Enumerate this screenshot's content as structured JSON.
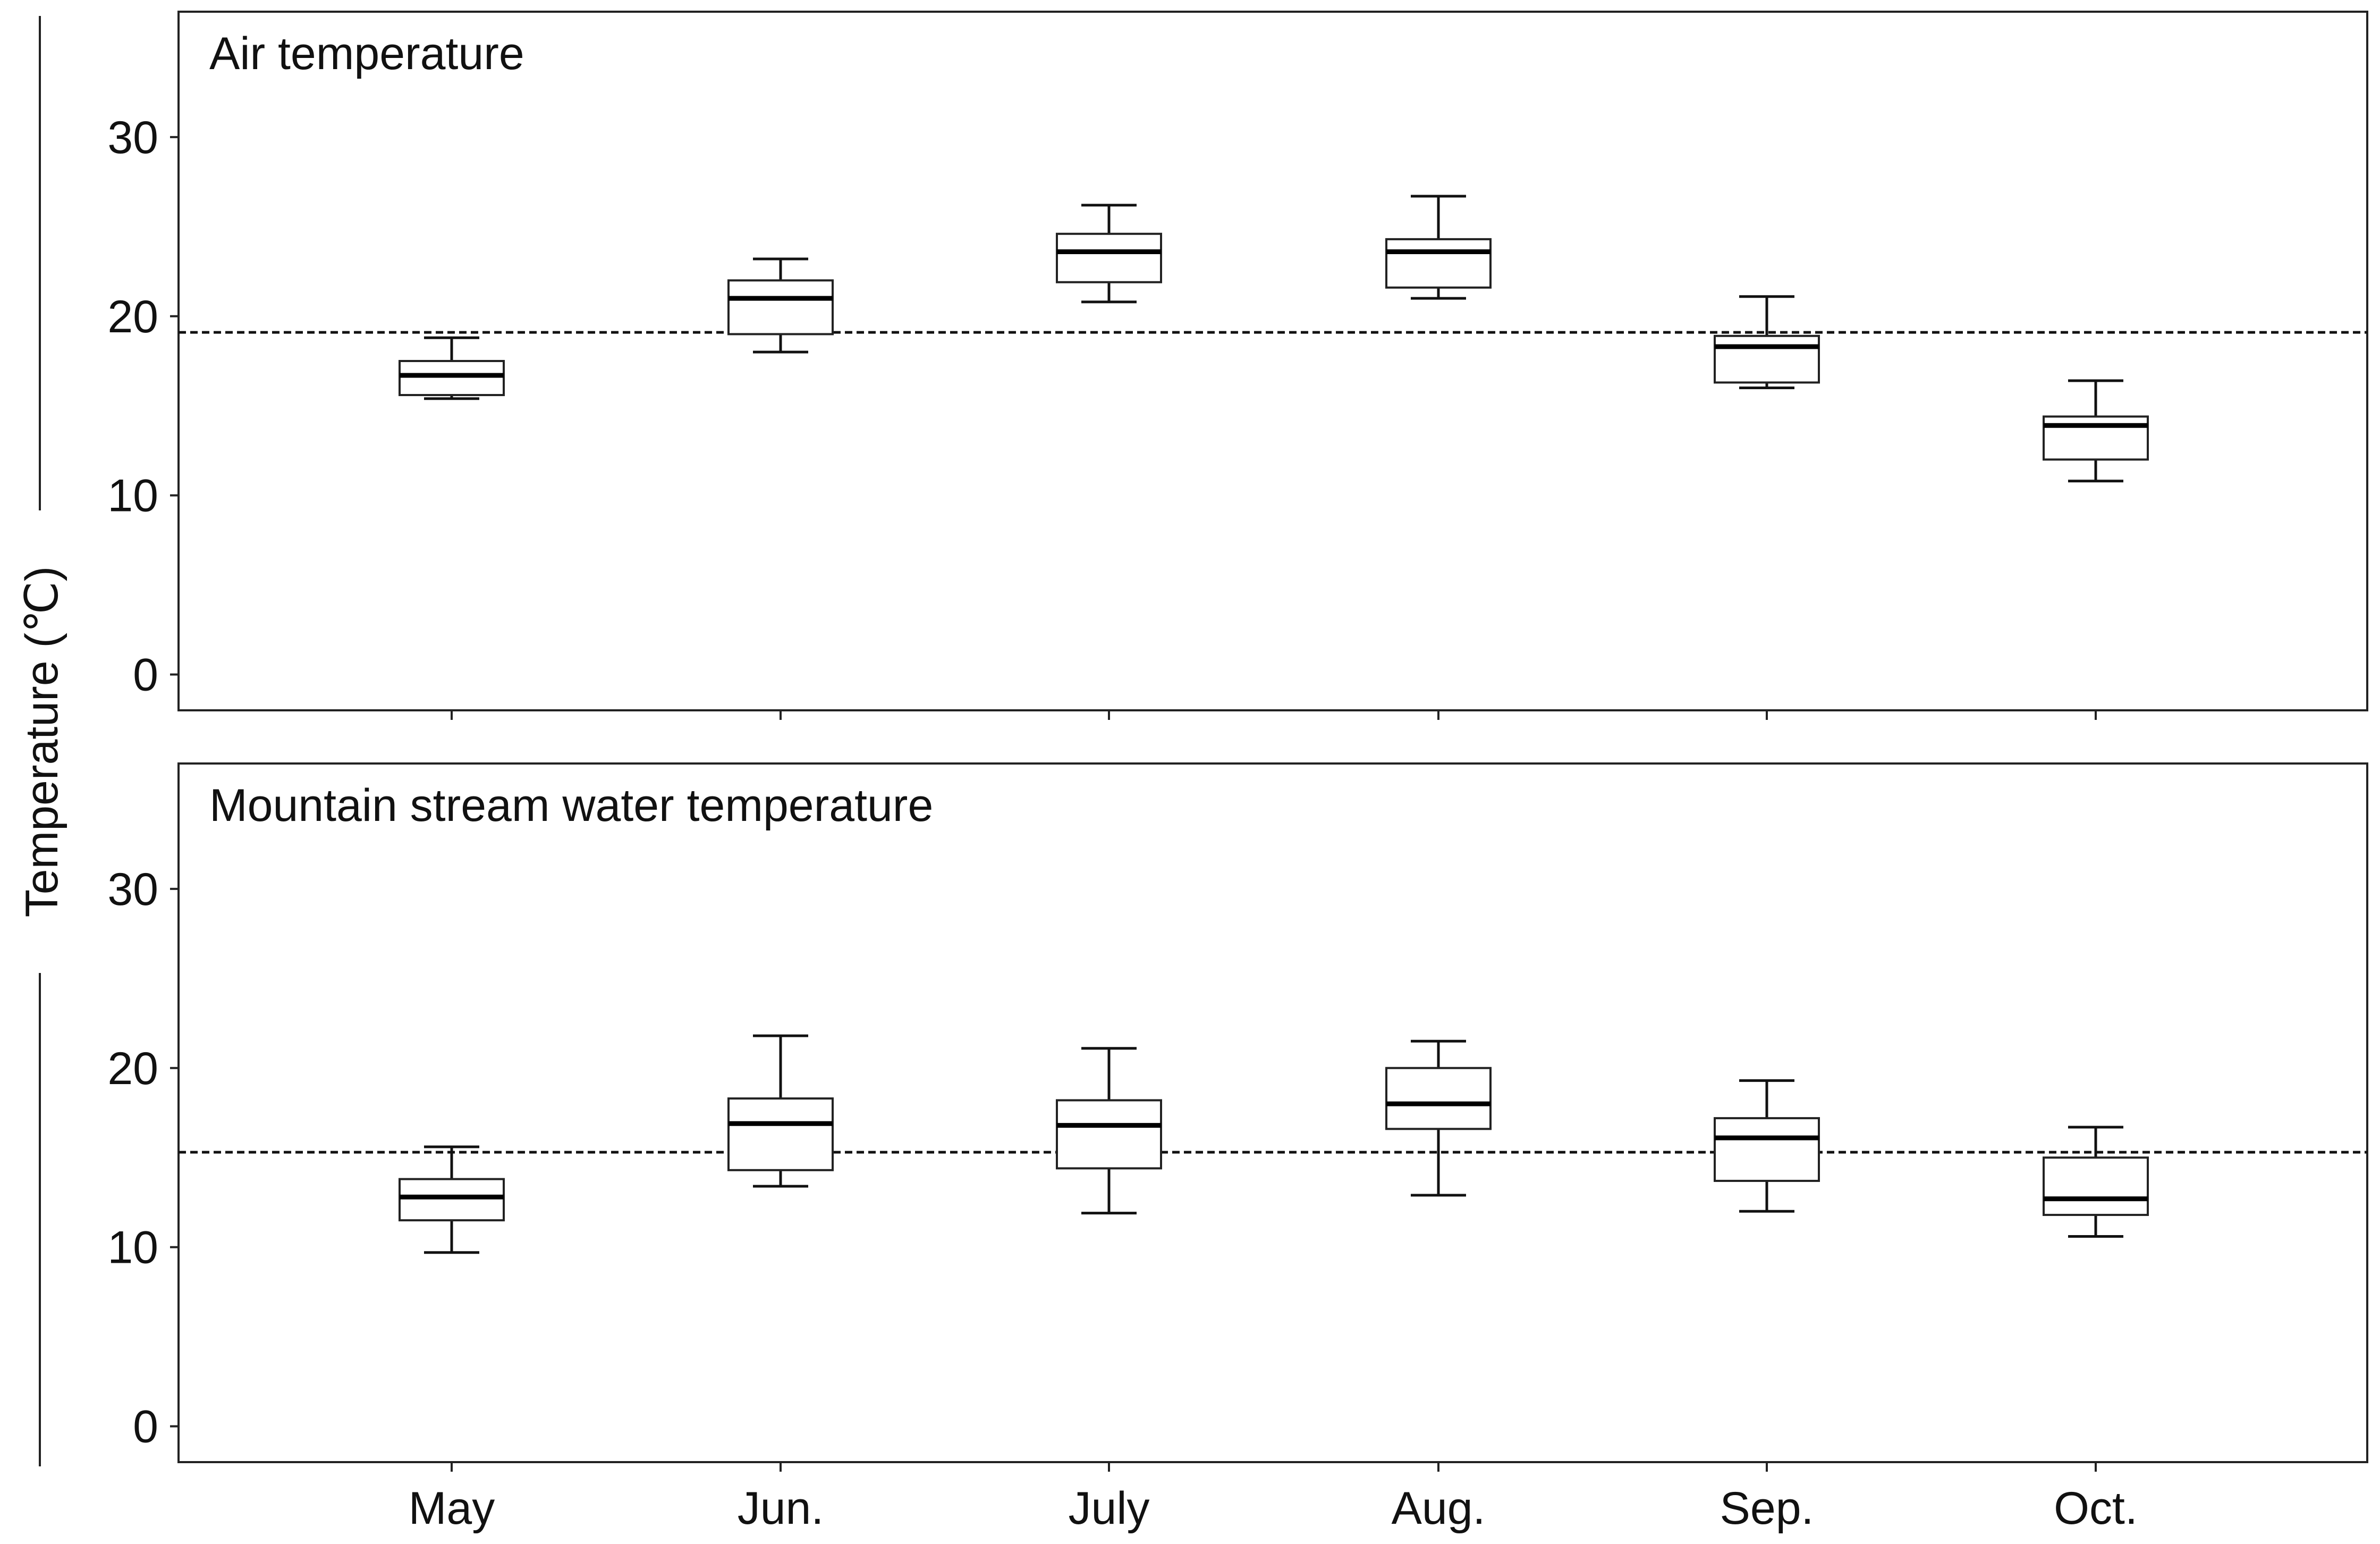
{
  "chart_data": {
    "type": "boxplot",
    "y_axis_title": "Temperature (℃)",
    "categories": [
      "May",
      "Jun.",
      "July",
      "Aug.",
      "Sep.",
      "Oct."
    ],
    "ylim": [
      -2,
      37
    ],
    "yticks": [
      0,
      10,
      20,
      30
    ],
    "ytick_labels": [
      "0",
      "10",
      "20",
      "30"
    ],
    "panels": [
      {
        "title": "Air temperature",
        "reference_line": 19.1,
        "boxes": [
          {
            "category": "May",
            "min": 15.4,
            "q1": 15.6,
            "median": 16.7,
            "q3": 17.5,
            "max": 18.8
          },
          {
            "category": "Jun.",
            "min": 18.0,
            "q1": 19.0,
            "median": 21.0,
            "q3": 22.0,
            "max": 23.2
          },
          {
            "category": "July",
            "min": 20.8,
            "q1": 21.9,
            "median": 23.6,
            "q3": 24.6,
            "max": 26.2
          },
          {
            "category": "Aug.",
            "min": 21.0,
            "q1": 21.6,
            "median": 23.6,
            "q3": 24.3,
            "max": 26.7
          },
          {
            "category": "Sep.",
            "min": 16.0,
            "q1": 16.3,
            "median": 18.3,
            "q3": 18.9,
            "max": 21.1
          },
          {
            "category": "Oct.",
            "min": 10.8,
            "q1": 12.0,
            "median": 13.9,
            "q3": 14.4,
            "max": 16.4
          }
        ]
      },
      {
        "title": "Mountain stream water temperature",
        "reference_line": 15.3,
        "boxes": [
          {
            "category": "May",
            "min": 9.7,
            "q1": 11.5,
            "median": 12.8,
            "q3": 13.8,
            "max": 15.6
          },
          {
            "category": "Jun.",
            "min": 13.4,
            "q1": 14.3,
            "median": 16.9,
            "q3": 18.3,
            "max": 21.8
          },
          {
            "category": "July",
            "min": 11.9,
            "q1": 14.4,
            "median": 16.8,
            "q3": 18.2,
            "max": 21.1
          },
          {
            "category": "Aug.",
            "min": 12.9,
            "q1": 16.6,
            "median": 18.0,
            "q3": 20.0,
            "max": 21.5
          },
          {
            "category": "Sep.",
            "min": 12.0,
            "q1": 13.7,
            "median": 16.1,
            "q3": 17.2,
            "max": 19.3
          },
          {
            "category": "Oct.",
            "min": 10.6,
            "q1": 11.8,
            "median": 12.7,
            "q3": 15.0,
            "max": 16.7
          }
        ]
      }
    ]
  }
}
